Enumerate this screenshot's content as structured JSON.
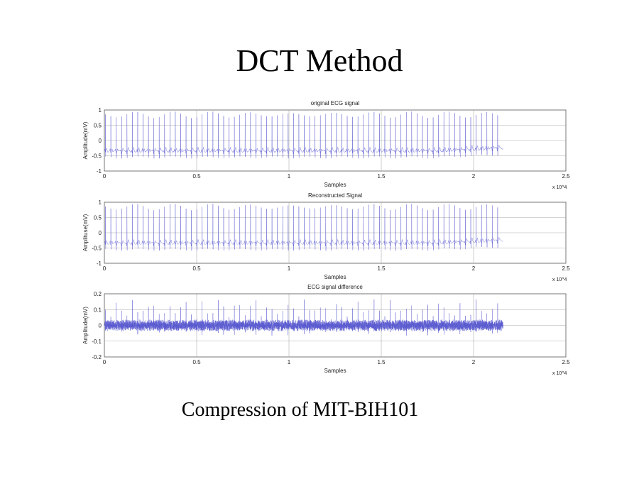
{
  "slide": {
    "title": "DCT Method",
    "subtitle": "Compression of MIT-BIH101"
  },
  "chart_data": [
    {
      "type": "line",
      "title": "original ECG signal",
      "xlabel": "Samples",
      "ylabel": "Amplitude(mV)",
      "x_multiplier": "x 10^4",
      "xlim": [
        0,
        25000
      ],
      "ylim": [
        -1,
        1
      ],
      "xticks": [
        "0",
        "0.5",
        "1",
        "1.5",
        "2",
        "2.5"
      ],
      "yticks": [
        "-1",
        "-0.5",
        "0",
        "0.5",
        "1"
      ],
      "grid": true,
      "signal_length_samples": 21600,
      "baseline_mV": -0.35,
      "r_peak_mV": 0.85,
      "color": "#5a5ad0"
    },
    {
      "type": "line",
      "title": "Reconstructed Signal",
      "xlabel": "Samples",
      "ylabel": "Amplituse(mV)",
      "x_multiplier": "x 10^4",
      "xlim": [
        0,
        25000
      ],
      "ylim": [
        -1,
        1
      ],
      "xticks": [
        "0",
        "0.5",
        "1",
        "1.5",
        "2",
        "2.5"
      ],
      "yticks": [
        "-1",
        "-0.5",
        "0",
        "0.5",
        "1"
      ],
      "grid": true,
      "signal_length_samples": 21600,
      "baseline_mV": -0.35,
      "r_peak_mV": 0.85,
      "color": "#5a5ad0"
    },
    {
      "type": "line",
      "title": "ECG signal difference",
      "xlabel": "Samples",
      "ylabel": "Amplitude(mV)",
      "x_multiplier": "x 10^4",
      "xlim": [
        0,
        25000
      ],
      "ylim": [
        -0.2,
        0.2
      ],
      "xticks": [
        "0",
        "0.5",
        "1",
        "1.5",
        "2",
        "2.5"
      ],
      "yticks": [
        "-0.2",
        "-0.1",
        "0",
        "0.1",
        "0.2"
      ],
      "grid": true,
      "signal_length_samples": 21600,
      "noise_range_mV": [
        -0.14,
        0.14
      ],
      "color": "#5a5ad0"
    }
  ],
  "r_peak_samples": [
    60,
    351,
    642,
    933,
    1224,
    1515,
    1806,
    2097,
    2388,
    2679,
    2970,
    3261,
    3552,
    3843,
    4134,
    4425,
    4716,
    5007,
    5298,
    5589,
    5880,
    6171,
    6462,
    6753,
    7044,
    7335,
    7626,
    7917,
    8208,
    8499,
    8790,
    9081,
    9372,
    9663,
    9954,
    10245,
    10536,
    10827,
    11118,
    11409,
    11700,
    11991,
    12282,
    12573,
    12864,
    13155,
    13446,
    13737,
    14028,
    14319,
    14610,
    14901,
    15192,
    15483,
    15774,
    16065,
    16356,
    16647,
    16938,
    17229,
    17520,
    17811,
    18102,
    18393,
    18684,
    18975,
    19266,
    19557,
    19848,
    20139,
    20430,
    20721,
    21012,
    21303
  ]
}
